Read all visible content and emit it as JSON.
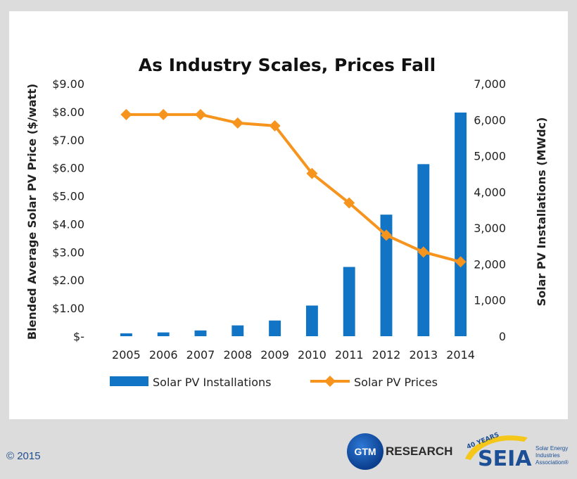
{
  "footer": {
    "copyright": "© 2015",
    "gtm_badge": "GTM",
    "gtm_text": "RESEARCH",
    "seia_badge": "40 YEARS",
    "seia_name": "SEIA",
    "seia_tagline": [
      "Solar Energy",
      "Industries",
      "Association®"
    ]
  },
  "colors": {
    "bars": "#1174c4",
    "line": "#f7941d",
    "background": "#dcdcdc"
  },
  "chart_data": {
    "type": "bar+line",
    "title": "As Industry Scales, Prices Fall",
    "categories": [
      "2005",
      "2006",
      "2007",
      "2008",
      "2009",
      "2010",
      "2011",
      "2012",
      "2013",
      "2014"
    ],
    "ylabel_left": "Blended Average Solar PV Price ($/watt)",
    "ylabel_right": "Solar PV Installations (MWdc)",
    "y_left": {
      "min": 0,
      "max": 9,
      "ticks": [
        0,
        1,
        2,
        3,
        4,
        5,
        6,
        7,
        8,
        9
      ],
      "tick_labels": [
        "$-",
        "$1.00",
        "$2.00",
        "$3.00",
        "$4.00",
        "$5.00",
        "$6.00",
        "$7.00",
        "$8.00",
        "$9.00"
      ]
    },
    "y_right": {
      "min": 0,
      "max": 7000,
      "ticks": [
        0,
        1000,
        2000,
        3000,
        4000,
        5000,
        6000,
        7000
      ],
      "tick_labels": [
        "0",
        "1,000",
        "2,000",
        "3,000",
        "4,000",
        "5,000",
        "6,000",
        "7,000"
      ]
    },
    "series": [
      {
        "name": "Solar PV Installations",
        "type": "bar",
        "axis": "right",
        "values": [
          80,
          105,
          160,
          300,
          435,
          850,
          1920,
          3370,
          4770,
          6200
        ]
      },
      {
        "name": "Solar PV Prices",
        "type": "line",
        "axis": "left",
        "values": [
          7.9,
          7.9,
          7.9,
          7.6,
          7.5,
          5.8,
          4.75,
          3.6,
          3.0,
          2.65
        ]
      }
    ],
    "grid": false,
    "legend_position": "bottom"
  }
}
